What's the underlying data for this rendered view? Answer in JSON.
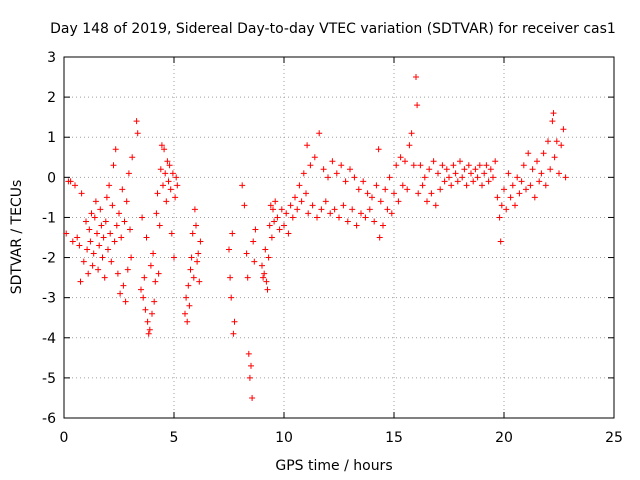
{
  "chart_data": {
    "type": "scatter",
    "title": "Day 148 of 2019, Sidereal Day-to-day VTEC variation (SDTVAR) for receiver cas1",
    "xlabel": "GPS time / hours",
    "ylabel": "SDTVAR / TECUs",
    "xlim": [
      0,
      25
    ],
    "ylim": [
      -6,
      3
    ],
    "xticks": [
      0,
      5,
      10,
      15,
      20,
      25
    ],
    "yticks": [
      -6,
      -5,
      -4,
      -3,
      -2,
      -1,
      0,
      1,
      2,
      3
    ],
    "grid": true,
    "marker": "+",
    "color": "#ff0000",
    "series": [
      {
        "name": "SDTVAR",
        "points": [
          [
            0.1,
            -1.4
          ],
          [
            0.2,
            -0.1
          ],
          [
            0.3,
            -0.1
          ],
          [
            0.4,
            -1.6
          ],
          [
            0.5,
            -0.2
          ],
          [
            0.6,
            -1.5
          ],
          [
            0.7,
            -1.7
          ],
          [
            0.75,
            -2.6
          ],
          [
            0.8,
            -0.4
          ],
          [
            0.9,
            -2.1
          ],
          [
            1.0,
            -1.1
          ],
          [
            1.05,
            -1.8
          ],
          [
            1.1,
            -2.4
          ],
          [
            1.15,
            -1.3
          ],
          [
            1.2,
            -1.6
          ],
          [
            1.25,
            -0.9
          ],
          [
            1.3,
            -2.2
          ],
          [
            1.35,
            -1.9
          ],
          [
            1.4,
            -1.0
          ],
          [
            1.45,
            -0.6
          ],
          [
            1.5,
            -1.4
          ],
          [
            1.55,
            -2.3
          ],
          [
            1.6,
            -1.7
          ],
          [
            1.65,
            -0.8
          ],
          [
            1.7,
            -1.2
          ],
          [
            1.75,
            -2.0
          ],
          [
            1.8,
            -1.5
          ],
          [
            1.85,
            -2.5
          ],
          [
            1.9,
            -1.1
          ],
          [
            1.95,
            -0.5
          ],
          [
            2.0,
            -1.8
          ],
          [
            2.05,
            -0.2
          ],
          [
            2.1,
            -1.4
          ],
          [
            2.15,
            -2.1
          ],
          [
            2.2,
            -0.7
          ],
          [
            2.25,
            0.3
          ],
          [
            2.3,
            -1.6
          ],
          [
            2.35,
            0.7
          ],
          [
            2.4,
            -1.2
          ],
          [
            2.45,
            -2.4
          ],
          [
            2.5,
            -0.9
          ],
          [
            2.55,
            -2.9
          ],
          [
            2.6,
            -1.5
          ],
          [
            2.65,
            -0.3
          ],
          [
            2.7,
            -2.7
          ],
          [
            2.75,
            -1.1
          ],
          [
            2.8,
            -3.1
          ],
          [
            2.85,
            -0.6
          ],
          [
            2.9,
            -2.3
          ],
          [
            2.95,
            0.1
          ],
          [
            3.0,
            -1.3
          ],
          [
            3.05,
            -2.0
          ],
          [
            3.1,
            0.5
          ],
          [
            3.3,
            1.4
          ],
          [
            3.35,
            1.1
          ],
          [
            3.5,
            -2.8
          ],
          [
            3.55,
            -1.0
          ],
          [
            3.6,
            -3.0
          ],
          [
            3.65,
            -2.5
          ],
          [
            3.7,
            -3.3
          ],
          [
            3.75,
            -1.5
          ],
          [
            3.8,
            -3.6
          ],
          [
            3.85,
            -3.9
          ],
          [
            3.9,
            -3.8
          ],
          [
            3.95,
            -2.2
          ],
          [
            4.0,
            -3.4
          ],
          [
            4.05,
            -1.9
          ],
          [
            4.1,
            -3.1
          ],
          [
            4.15,
            -2.6
          ],
          [
            4.2,
            -0.9
          ],
          [
            4.25,
            -0.4
          ],
          [
            4.3,
            -2.4
          ],
          [
            4.35,
            -1.2
          ],
          [
            4.4,
            0.2
          ],
          [
            4.45,
            0.8
          ],
          [
            4.5,
            -0.2
          ],
          [
            4.55,
            0.7
          ],
          [
            4.6,
            0.1
          ],
          [
            4.65,
            -0.6
          ],
          [
            4.7,
            0.4
          ],
          [
            4.75,
            -0.1
          ],
          [
            4.8,
            0.3
          ],
          [
            4.85,
            -0.3
          ],
          [
            4.9,
            -1.4
          ],
          [
            4.95,
            0.1
          ],
          [
            5.0,
            -2.0
          ],
          [
            5.05,
            -0.5
          ],
          [
            5.1,
            0.0
          ],
          [
            5.15,
            -0.2
          ],
          [
            5.5,
            -3.4
          ],
          [
            5.55,
            -3.0
          ],
          [
            5.6,
            -3.6
          ],
          [
            5.65,
            -2.7
          ],
          [
            5.7,
            -3.2
          ],
          [
            5.75,
            -2.3
          ],
          [
            5.8,
            -2.0
          ],
          [
            5.85,
            -1.4
          ],
          [
            5.9,
            -2.5
          ],
          [
            5.95,
            -0.8
          ],
          [
            6.0,
            -1.2
          ],
          [
            6.05,
            -2.1
          ],
          [
            6.1,
            -1.9
          ],
          [
            6.15,
            -2.6
          ],
          [
            6.2,
            -1.6
          ],
          [
            7.5,
            -1.8
          ],
          [
            7.55,
            -2.5
          ],
          [
            7.6,
            -3.0
          ],
          [
            7.65,
            -1.4
          ],
          [
            7.7,
            -3.9
          ],
          [
            7.75,
            -3.6
          ],
          [
            8.1,
            -0.2
          ],
          [
            8.2,
            -0.7
          ],
          [
            8.3,
            -1.9
          ],
          [
            8.35,
            -2.5
          ],
          [
            8.4,
            -4.4
          ],
          [
            8.45,
            -5.0
          ],
          [
            8.5,
            -4.7
          ],
          [
            8.55,
            -5.5
          ],
          [
            8.6,
            -1.6
          ],
          [
            8.65,
            -2.1
          ],
          [
            8.7,
            -1.3
          ],
          [
            9.0,
            -2.2
          ],
          [
            9.05,
            -2.5
          ],
          [
            9.1,
            -2.4
          ],
          [
            9.15,
            -1.8
          ],
          [
            9.2,
            -2.6
          ],
          [
            9.25,
            -2.8
          ],
          [
            9.3,
            -2.0
          ],
          [
            9.35,
            -1.2
          ],
          [
            9.4,
            -0.7
          ],
          [
            9.45,
            -1.5
          ],
          [
            9.5,
            -0.8
          ],
          [
            9.55,
            -1.1
          ],
          [
            9.6,
            -0.6
          ],
          [
            9.7,
            -1.0
          ],
          [
            9.8,
            -1.3
          ],
          [
            9.9,
            -0.8
          ],
          [
            10.0,
            -1.2
          ],
          [
            10.1,
            -0.9
          ],
          [
            10.2,
            -1.4
          ],
          [
            10.3,
            -0.7
          ],
          [
            10.4,
            -1.0
          ],
          [
            10.5,
            -0.5
          ],
          [
            10.6,
            -0.8
          ],
          [
            10.7,
            -0.2
          ],
          [
            10.8,
            -0.6
          ],
          [
            10.9,
            0.1
          ],
          [
            11.0,
            -0.4
          ],
          [
            11.05,
            0.8
          ],
          [
            11.1,
            -0.9
          ],
          [
            11.2,
            0.3
          ],
          [
            11.3,
            -0.7
          ],
          [
            11.4,
            0.5
          ],
          [
            11.5,
            -1.0
          ],
          [
            11.6,
            1.1
          ],
          [
            11.7,
            -0.8
          ],
          [
            11.8,
            0.2
          ],
          [
            11.9,
            -0.6
          ],
          [
            12.0,
            0.0
          ],
          [
            12.1,
            -0.9
          ],
          [
            12.2,
            0.4
          ],
          [
            12.3,
            -0.8
          ],
          [
            12.4,
            0.1
          ],
          [
            12.5,
            -1.0
          ],
          [
            12.6,
            0.3
          ],
          [
            12.7,
            -0.7
          ],
          [
            12.8,
            -0.1
          ],
          [
            12.9,
            -1.1
          ],
          [
            13.0,
            0.2
          ],
          [
            13.1,
            -0.8
          ],
          [
            13.2,
            0.0
          ],
          [
            13.3,
            -1.2
          ],
          [
            13.4,
            -0.3
          ],
          [
            13.5,
            -0.9
          ],
          [
            13.6,
            -0.1
          ],
          [
            13.7,
            -1.0
          ],
          [
            13.8,
            -0.4
          ],
          [
            13.9,
            -0.8
          ],
          [
            14.0,
            -0.5
          ],
          [
            14.1,
            -1.1
          ],
          [
            14.2,
            -0.2
          ],
          [
            14.3,
            0.7
          ],
          [
            14.35,
            -1.5
          ],
          [
            14.4,
            -0.6
          ],
          [
            14.5,
            -1.2
          ],
          [
            14.6,
            -0.3
          ],
          [
            14.7,
            -0.8
          ],
          [
            14.8,
            0.0
          ],
          [
            14.9,
            -0.9
          ],
          [
            15.0,
            -0.4
          ],
          [
            15.1,
            0.3
          ],
          [
            15.2,
            -0.6
          ],
          [
            15.3,
            0.5
          ],
          [
            15.4,
            -0.2
          ],
          [
            15.5,
            0.4
          ],
          [
            15.6,
            -0.3
          ],
          [
            15.7,
            0.8
          ],
          [
            15.8,
            1.1
          ],
          [
            15.9,
            0.3
          ],
          [
            16.0,
            2.5
          ],
          [
            16.05,
            1.8
          ],
          [
            16.1,
            -0.4
          ],
          [
            16.2,
            0.3
          ],
          [
            16.3,
            -0.2
          ],
          [
            16.4,
            0.0
          ],
          [
            16.5,
            -0.6
          ],
          [
            16.6,
            0.2
          ],
          [
            16.7,
            -0.4
          ],
          [
            16.8,
            0.4
          ],
          [
            16.9,
            -0.7
          ],
          [
            17.0,
            0.1
          ],
          [
            17.1,
            -0.3
          ],
          [
            17.2,
            0.3
          ],
          [
            17.3,
            -0.1
          ],
          [
            17.4,
            0.2
          ],
          [
            17.5,
            0.0
          ],
          [
            17.6,
            -0.2
          ],
          [
            17.7,
            0.3
          ],
          [
            17.8,
            0.1
          ],
          [
            17.9,
            -0.1
          ],
          [
            18.0,
            0.4
          ],
          [
            18.1,
            0.0
          ],
          [
            18.2,
            0.2
          ],
          [
            18.3,
            -0.2
          ],
          [
            18.4,
            0.3
          ],
          [
            18.5,
            0.1
          ],
          [
            18.6,
            -0.1
          ],
          [
            18.7,
            0.2
          ],
          [
            18.8,
            0.0
          ],
          [
            18.9,
            0.3
          ],
          [
            19.0,
            -0.2
          ],
          [
            19.1,
            0.1
          ],
          [
            19.2,
            0.3
          ],
          [
            19.3,
            -0.1
          ],
          [
            19.4,
            0.2
          ],
          [
            19.5,
            0.0
          ],
          [
            19.6,
            0.4
          ],
          [
            19.7,
            -0.5
          ],
          [
            19.8,
            -1.0
          ],
          [
            19.85,
            -1.6
          ],
          [
            19.9,
            -0.7
          ],
          [
            20.0,
            -0.3
          ],
          [
            20.1,
            -0.8
          ],
          [
            20.2,
            0.1
          ],
          [
            20.3,
            -0.5
          ],
          [
            20.4,
            -0.2
          ],
          [
            20.5,
            -0.7
          ],
          [
            20.6,
            0.0
          ],
          [
            20.7,
            -0.4
          ],
          [
            20.8,
            -0.1
          ],
          [
            20.9,
            0.3
          ],
          [
            21.0,
            -0.3
          ],
          [
            21.1,
            0.6
          ],
          [
            21.2,
            -0.2
          ],
          [
            21.3,
            0.2
          ],
          [
            21.4,
            -0.5
          ],
          [
            21.5,
            0.4
          ],
          [
            21.6,
            -0.1
          ],
          [
            21.7,
            0.1
          ],
          [
            21.8,
            0.6
          ],
          [
            21.9,
            -0.2
          ],
          [
            22.0,
            0.9
          ],
          [
            22.1,
            0.2
          ],
          [
            22.2,
            1.4
          ],
          [
            22.25,
            1.6
          ],
          [
            22.3,
            0.5
          ],
          [
            22.4,
            0.9
          ],
          [
            22.5,
            0.1
          ],
          [
            22.6,
            0.8
          ],
          [
            22.7,
            1.2
          ],
          [
            22.8,
            0.0
          ]
        ]
      }
    ]
  }
}
